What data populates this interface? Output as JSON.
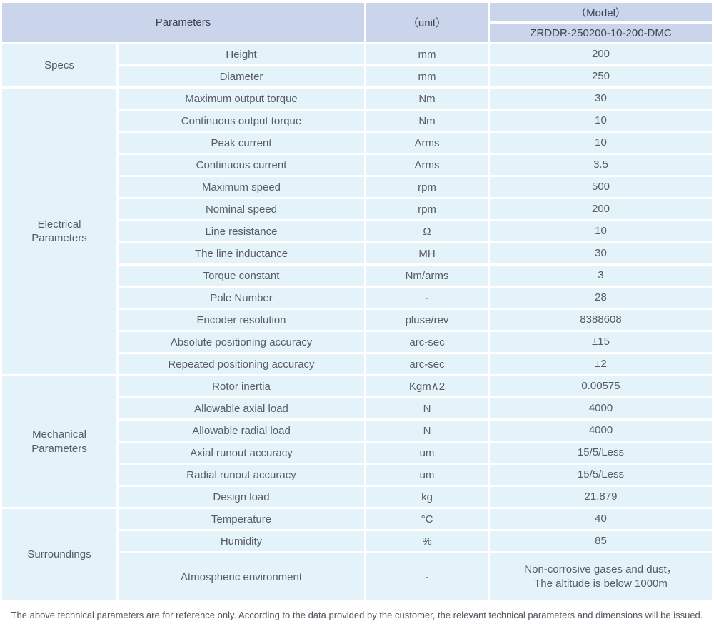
{
  "colors": {
    "header_bg": "#cad4ea",
    "cell_bg": "#e4f2fa",
    "gridline": "#ffffff",
    "header_text": "#3e4450",
    "body_text": "#565d66"
  },
  "header": {
    "parameters_label": "Parameters",
    "unit_label": "（unit）",
    "model_label": "（Model）",
    "model_code": "ZRDDR-250200-10-200-DMC"
  },
  "sections": [
    {
      "group": "Specs",
      "rows": [
        {
          "param": "Height",
          "unit": "mm",
          "value": "200"
        },
        {
          "param": "Diameter",
          "unit": "mm",
          "value": "250"
        }
      ]
    },
    {
      "group": "Electrical\nParameters",
      "rows": [
        {
          "param": "Maximum output torque",
          "unit": "Nm",
          "value": "30"
        },
        {
          "param": "Continuous output torque",
          "unit": "Nm",
          "value": "10"
        },
        {
          "param": "Peak current",
          "unit": "Arms",
          "value": "10"
        },
        {
          "param": "Continuous current",
          "unit": "Arms",
          "value": "3.5"
        },
        {
          "param": "Maximum speed",
          "unit": "rpm",
          "value": "500"
        },
        {
          "param": "Nominal speed",
          "unit": "rpm",
          "value": "200"
        },
        {
          "param": "Line resistance",
          "unit": "Ω",
          "value": "10"
        },
        {
          "param": "The line inductance",
          "unit": "MH",
          "value": "30"
        },
        {
          "param": "Torque constant",
          "unit": "Nm/arms",
          "value": "3"
        },
        {
          "param": "Pole Number",
          "unit": "-",
          "value": "28"
        },
        {
          "param": "Encoder resolution",
          "unit": "pluse/rev",
          "value": "8388608"
        },
        {
          "param": "Absolute positioning accuracy",
          "unit": "arc-sec",
          "value": "±15"
        },
        {
          "param": "Repeated positioning accuracy",
          "unit": "arc-sec",
          "value": "±2"
        }
      ]
    },
    {
      "group": "Mechanical\nParameters",
      "rows": [
        {
          "param": "Rotor inertia",
          "unit": "Kgm∧2",
          "value": "0.00575"
        },
        {
          "param": "Allowable axial load",
          "unit": "N",
          "value": "4000"
        },
        {
          "param": "Allowable radial load",
          "unit": "N",
          "value": "4000"
        },
        {
          "param": "Axial runout accuracy",
          "unit": "um",
          "value": "15/5/Less"
        },
        {
          "param": "Radial runout accuracy",
          "unit": "um",
          "value": "15/5/Less"
        },
        {
          "param": "Design load",
          "unit": "kg",
          "value": "21.879"
        }
      ]
    },
    {
      "group": "Surroundings",
      "rows": [
        {
          "param": "Temperature",
          "unit": "°C",
          "value": "40"
        },
        {
          "param": "Humidity",
          "unit": "%",
          "value": "85"
        },
        {
          "param": "Atmospheric environment",
          "unit": "-",
          "value": "Non-corrosive gases and dust，\nThe altitude is below 1000m",
          "tall": true
        }
      ]
    }
  ],
  "footer": {
    "note": "The above technical parameters are for reference only. According to the data provided by the customer, the relevant technical parameters and dimensions will be issued."
  }
}
